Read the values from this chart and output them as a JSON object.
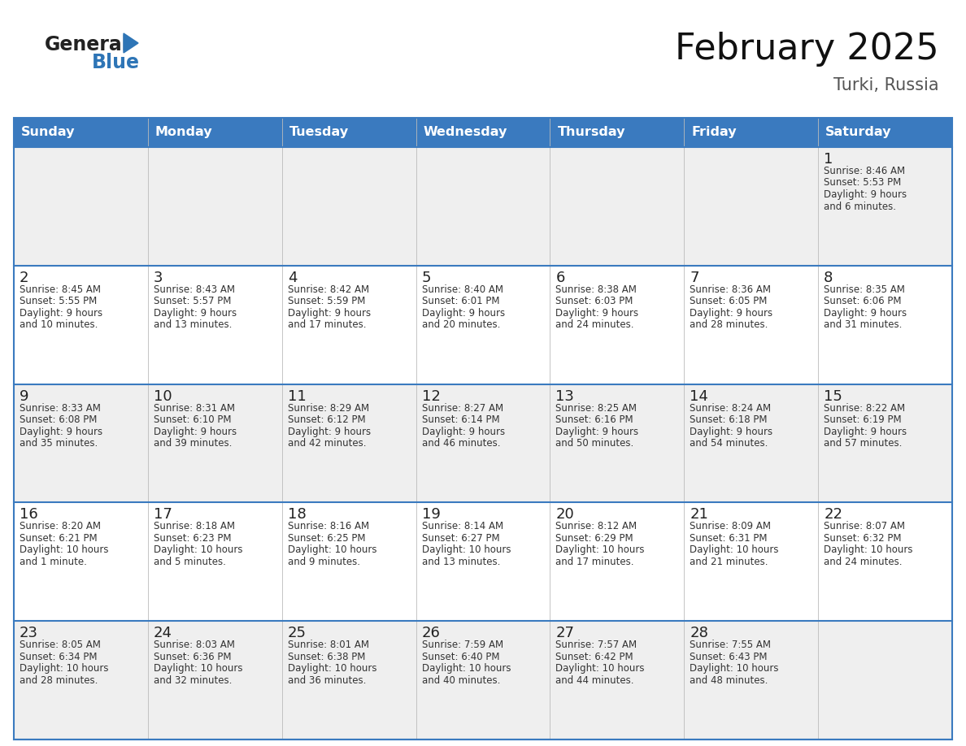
{
  "title": "February 2025",
  "subtitle": "Turki, Russia",
  "days_of_week": [
    "Sunday",
    "Monday",
    "Tuesday",
    "Wednesday",
    "Thursday",
    "Friday",
    "Saturday"
  ],
  "header_bg": "#3a7abf",
  "header_text_color": "#FFFFFF",
  "cell_bg_gray": "#EFEFEF",
  "cell_bg_white": "#FFFFFF",
  "cell_border_color": "#3a7abf",
  "text_color": "#333333",
  "day_number_color": "#222222",
  "logo_general_color": "#222222",
  "logo_blue_color": "#2E75B6",
  "calendar_data": [
    [
      null,
      null,
      null,
      null,
      null,
      null,
      {
        "day": "1",
        "sunrise": "8:46 AM",
        "sunset": "5:53 PM",
        "daylight": "9 hours and 6 minutes."
      }
    ],
    [
      {
        "day": "2",
        "sunrise": "8:45 AM",
        "sunset": "5:55 PM",
        "daylight": "9 hours and 10 minutes."
      },
      {
        "day": "3",
        "sunrise": "8:43 AM",
        "sunset": "5:57 PM",
        "daylight": "9 hours and 13 minutes."
      },
      {
        "day": "4",
        "sunrise": "8:42 AM",
        "sunset": "5:59 PM",
        "daylight": "9 hours and 17 minutes."
      },
      {
        "day": "5",
        "sunrise": "8:40 AM",
        "sunset": "6:01 PM",
        "daylight": "9 hours and 20 minutes."
      },
      {
        "day": "6",
        "sunrise": "8:38 AM",
        "sunset": "6:03 PM",
        "daylight": "9 hours and 24 minutes."
      },
      {
        "day": "7",
        "sunrise": "8:36 AM",
        "sunset": "6:05 PM",
        "daylight": "9 hours and 28 minutes."
      },
      {
        "day": "8",
        "sunrise": "8:35 AM",
        "sunset": "6:06 PM",
        "daylight": "9 hours and 31 minutes."
      }
    ],
    [
      {
        "day": "9",
        "sunrise": "8:33 AM",
        "sunset": "6:08 PM",
        "daylight": "9 hours and 35 minutes."
      },
      {
        "day": "10",
        "sunrise": "8:31 AM",
        "sunset": "6:10 PM",
        "daylight": "9 hours and 39 minutes."
      },
      {
        "day": "11",
        "sunrise": "8:29 AM",
        "sunset": "6:12 PM",
        "daylight": "9 hours and 42 minutes."
      },
      {
        "day": "12",
        "sunrise": "8:27 AM",
        "sunset": "6:14 PM",
        "daylight": "9 hours and 46 minutes."
      },
      {
        "day": "13",
        "sunrise": "8:25 AM",
        "sunset": "6:16 PM",
        "daylight": "9 hours and 50 minutes."
      },
      {
        "day": "14",
        "sunrise": "8:24 AM",
        "sunset": "6:18 PM",
        "daylight": "9 hours and 54 minutes."
      },
      {
        "day": "15",
        "sunrise": "8:22 AM",
        "sunset": "6:19 PM",
        "daylight": "9 hours and 57 minutes."
      }
    ],
    [
      {
        "day": "16",
        "sunrise": "8:20 AM",
        "sunset": "6:21 PM",
        "daylight": "10 hours and 1 minute."
      },
      {
        "day": "17",
        "sunrise": "8:18 AM",
        "sunset": "6:23 PM",
        "daylight": "10 hours and 5 minutes."
      },
      {
        "day": "18",
        "sunrise": "8:16 AM",
        "sunset": "6:25 PM",
        "daylight": "10 hours and 9 minutes."
      },
      {
        "day": "19",
        "sunrise": "8:14 AM",
        "sunset": "6:27 PM",
        "daylight": "10 hours and 13 minutes."
      },
      {
        "day": "20",
        "sunrise": "8:12 AM",
        "sunset": "6:29 PM",
        "daylight": "10 hours and 17 minutes."
      },
      {
        "day": "21",
        "sunrise": "8:09 AM",
        "sunset": "6:31 PM",
        "daylight": "10 hours and 21 minutes."
      },
      {
        "day": "22",
        "sunrise": "8:07 AM",
        "sunset": "6:32 PM",
        "daylight": "10 hours and 24 minutes."
      }
    ],
    [
      {
        "day": "23",
        "sunrise": "8:05 AM",
        "sunset": "6:34 PM",
        "daylight": "10 hours and 28 minutes."
      },
      {
        "day": "24",
        "sunrise": "8:03 AM",
        "sunset": "6:36 PM",
        "daylight": "10 hours and 32 minutes."
      },
      {
        "day": "25",
        "sunrise": "8:01 AM",
        "sunset": "6:38 PM",
        "daylight": "10 hours and 36 minutes."
      },
      {
        "day": "26",
        "sunrise": "7:59 AM",
        "sunset": "6:40 PM",
        "daylight": "10 hours and 40 minutes."
      },
      {
        "day": "27",
        "sunrise": "7:57 AM",
        "sunset": "6:42 PM",
        "daylight": "10 hours and 44 minutes."
      },
      {
        "day": "28",
        "sunrise": "7:55 AM",
        "sunset": "6:43 PM",
        "daylight": "10 hours and 48 minutes."
      },
      null
    ]
  ]
}
